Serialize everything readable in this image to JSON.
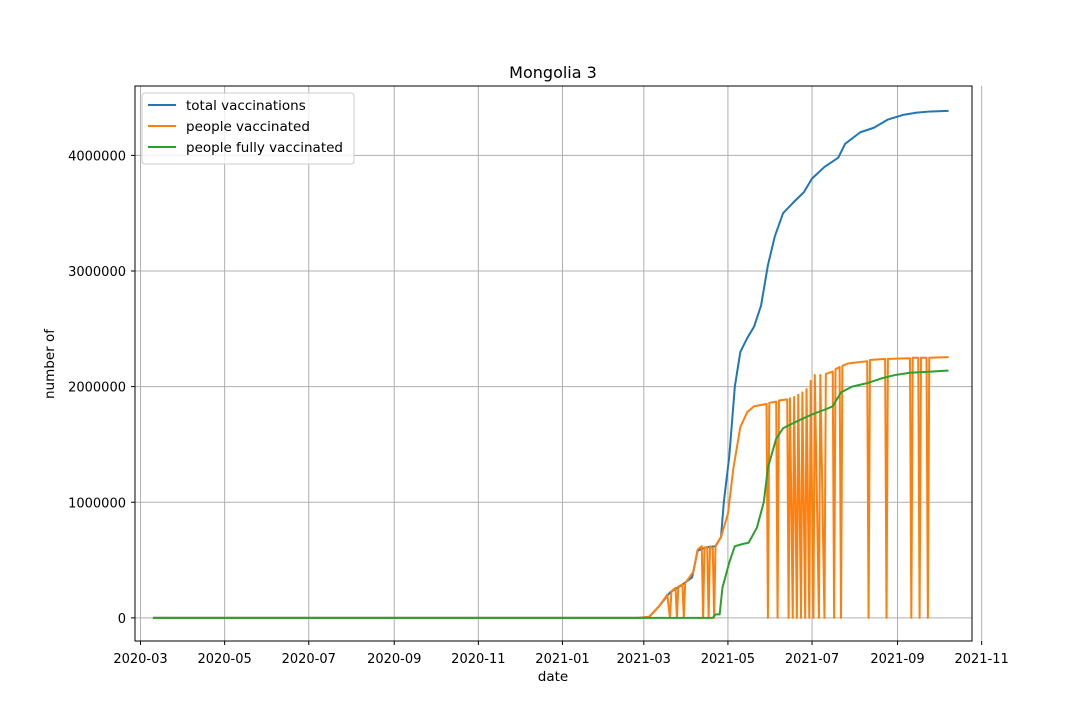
{
  "chart_data": {
    "type": "line",
    "title": "Mongolia 3",
    "xlabel": "date",
    "ylabel": "number of",
    "x_range": [
      "2020-02-26",
      "2021-10-25"
    ],
    "ylim": [
      -200000,
      4600000
    ],
    "grid": true,
    "legend_position": "top-left",
    "x_ticks": [
      {
        "date": "2020-03-01",
        "label": "2020-03"
      },
      {
        "date": "2020-05-01",
        "label": "2020-05"
      },
      {
        "date": "2020-07-01",
        "label": "2020-07"
      },
      {
        "date": "2020-09-01",
        "label": "2020-09"
      },
      {
        "date": "2020-11-01",
        "label": "2020-11"
      },
      {
        "date": "2021-01-01",
        "label": "2021-01"
      },
      {
        "date": "2021-03-01",
        "label": "2021-03"
      },
      {
        "date": "2021-05-01",
        "label": "2021-05"
      },
      {
        "date": "2021-07-01",
        "label": "2021-07"
      },
      {
        "date": "2021-09-01",
        "label": "2021-09"
      },
      {
        "date": "2021-11-01",
        "label": "2021-11"
      }
    ],
    "y_ticks": [
      {
        "value": 0,
        "label": "0"
      },
      {
        "value": 1000000,
        "label": "1000000"
      },
      {
        "value": 2000000,
        "label": "2000000"
      },
      {
        "value": 3000000,
        "label": "3000000"
      },
      {
        "value": 4000000,
        "label": "4000000"
      }
    ],
    "series": [
      {
        "name": "total vaccinations",
        "color": "#1f77b4",
        "points": [
          [
            "2020-03-10",
            0
          ],
          [
            "2021-02-25",
            0
          ],
          [
            "2021-03-05",
            10000
          ],
          [
            "2021-03-12",
            100000
          ],
          [
            "2021-03-20",
            220000
          ],
          [
            "2021-03-28",
            280000
          ],
          [
            "2021-04-05",
            350000
          ],
          [
            "2021-04-09",
            580000
          ],
          [
            "2021-04-15",
            610000
          ],
          [
            "2021-04-22",
            620000
          ],
          [
            "2021-04-26",
            700000
          ],
          [
            "2021-04-28",
            1000000
          ],
          [
            "2021-05-02",
            1400000
          ],
          [
            "2021-05-06",
            2000000
          ],
          [
            "2021-05-10",
            2300000
          ],
          [
            "2021-05-15",
            2420000
          ],
          [
            "2021-05-20",
            2520000
          ],
          [
            "2021-05-25",
            2700000
          ],
          [
            "2021-05-30",
            3050000
          ],
          [
            "2021-06-04",
            3300000
          ],
          [
            "2021-06-10",
            3500000
          ],
          [
            "2021-06-18",
            3600000
          ],
          [
            "2021-06-25",
            3680000
          ],
          [
            "2021-07-01",
            3800000
          ],
          [
            "2021-07-10",
            3900000
          ],
          [
            "2021-07-20",
            3980000
          ],
          [
            "2021-07-25",
            4100000
          ],
          [
            "2021-08-05",
            4200000
          ],
          [
            "2021-08-15",
            4240000
          ],
          [
            "2021-08-25",
            4310000
          ],
          [
            "2021-09-05",
            4350000
          ],
          [
            "2021-09-15",
            4370000
          ],
          [
            "2021-09-25",
            4380000
          ],
          [
            "2021-10-08",
            4385000
          ]
        ]
      },
      {
        "name": "people vaccinated",
        "color": "#ff7f0e",
        "points": [
          [
            "2020-03-10",
            0
          ],
          [
            "2021-02-25",
            0
          ],
          [
            "2021-03-05",
            10000
          ],
          [
            "2021-03-12",
            100000
          ],
          [
            "2021-03-18",
            200000
          ],
          [
            "2021-03-20",
            0
          ],
          [
            "2021-03-21",
            230000
          ],
          [
            "2021-03-24",
            260000
          ],
          [
            "2021-03-25",
            0
          ],
          [
            "2021-03-26",
            270000
          ],
          [
            "2021-03-29",
            290000
          ],
          [
            "2021-03-30",
            0
          ],
          [
            "2021-03-31",
            300000
          ],
          [
            "2021-04-06",
            400000
          ],
          [
            "2021-04-09",
            590000
          ],
          [
            "2021-04-12",
            620000
          ],
          [
            "2021-04-13",
            0
          ],
          [
            "2021-04-14",
            610000
          ],
          [
            "2021-04-16",
            610000
          ],
          [
            "2021-04-17",
            0
          ],
          [
            "2021-04-18",
            620000
          ],
          [
            "2021-04-20",
            600000
          ],
          [
            "2021-04-21",
            0
          ],
          [
            "2021-04-22",
            620000
          ],
          [
            "2021-04-26",
            700000
          ],
          [
            "2021-05-01",
            900000
          ],
          [
            "2021-05-05",
            1300000
          ],
          [
            "2021-05-10",
            1650000
          ],
          [
            "2021-05-15",
            1780000
          ],
          [
            "2021-05-20",
            1830000
          ],
          [
            "2021-05-29",
            1850000
          ],
          [
            "2021-05-30",
            0
          ],
          [
            "2021-05-31",
            1860000
          ],
          [
            "2021-06-05",
            1870000
          ],
          [
            "2021-06-06",
            0
          ],
          [
            "2021-06-07",
            1880000
          ],
          [
            "2021-06-13",
            1890000
          ],
          [
            "2021-06-14",
            0
          ],
          [
            "2021-06-15",
            1900000
          ],
          [
            "2021-06-17",
            0
          ],
          [
            "2021-06-18",
            1910000
          ],
          [
            "2021-06-20",
            0
          ],
          [
            "2021-06-21",
            1930000
          ],
          [
            "2021-06-23",
            0
          ],
          [
            "2021-06-24",
            1950000
          ],
          [
            "2021-06-26",
            0
          ],
          [
            "2021-06-27",
            1980000
          ],
          [
            "2021-06-29",
            0
          ],
          [
            "2021-06-30",
            2050000
          ],
          [
            "2021-07-02",
            0
          ],
          [
            "2021-07-03",
            2100000
          ],
          [
            "2021-07-06",
            0
          ],
          [
            "2021-07-07",
            2100000
          ],
          [
            "2021-07-10",
            0
          ],
          [
            "2021-07-11",
            2110000
          ],
          [
            "2021-07-16",
            2130000
          ],
          [
            "2021-07-17",
            0
          ],
          [
            "2021-07-18",
            2150000
          ],
          [
            "2021-07-21",
            2170000
          ],
          [
            "2021-07-22",
            0
          ],
          [
            "2021-07-23",
            2180000
          ],
          [
            "2021-07-27",
            2200000
          ],
          [
            "2021-08-10",
            2220000
          ],
          [
            "2021-08-11",
            0
          ],
          [
            "2021-08-12",
            2230000
          ],
          [
            "2021-08-23",
            2240000
          ],
          [
            "2021-08-24",
            0
          ],
          [
            "2021-08-25",
            2240000
          ],
          [
            "2021-09-10",
            2245000
          ],
          [
            "2021-09-11",
            0
          ],
          [
            "2021-09-12",
            2250000
          ],
          [
            "2021-09-16",
            2250000
          ],
          [
            "2021-09-17",
            0
          ],
          [
            "2021-09-18",
            2250000
          ],
          [
            "2021-09-22",
            2250000
          ],
          [
            "2021-09-23",
            0
          ],
          [
            "2021-09-24",
            2250000
          ],
          [
            "2021-10-08",
            2255000
          ]
        ]
      },
      {
        "name": "people fully vaccinated",
        "color": "#2ca02c",
        "points": [
          [
            "2020-03-10",
            0
          ],
          [
            "2021-02-25",
            0
          ],
          [
            "2021-04-20",
            0
          ],
          [
            "2021-04-22",
            30000
          ],
          [
            "2021-04-25",
            30000
          ],
          [
            "2021-04-27",
            260000
          ],
          [
            "2021-05-02",
            480000
          ],
          [
            "2021-05-06",
            620000
          ],
          [
            "2021-05-12",
            640000
          ],
          [
            "2021-05-16",
            650000
          ],
          [
            "2021-05-22",
            780000
          ],
          [
            "2021-05-27",
            1000000
          ],
          [
            "2021-05-30",
            1300000
          ],
          [
            "2021-06-05",
            1550000
          ],
          [
            "2021-06-10",
            1640000
          ],
          [
            "2021-06-20",
            1700000
          ],
          [
            "2021-07-01",
            1760000
          ],
          [
            "2021-07-10",
            1800000
          ],
          [
            "2021-07-16",
            1830000
          ],
          [
            "2021-07-22",
            1950000
          ],
          [
            "2021-07-30",
            2000000
          ],
          [
            "2021-08-10",
            2030000
          ],
          [
            "2021-08-20",
            2070000
          ],
          [
            "2021-08-30",
            2100000
          ],
          [
            "2021-09-10",
            2120000
          ],
          [
            "2021-09-25",
            2130000
          ],
          [
            "2021-10-08",
            2140000
          ]
        ]
      }
    ]
  }
}
